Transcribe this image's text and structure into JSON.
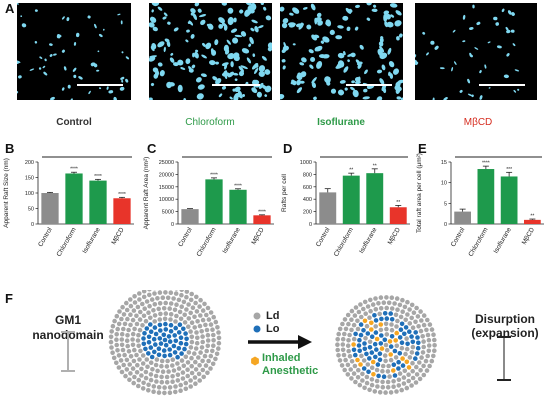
{
  "panels": {
    "A": "A",
    "B": "B",
    "C": "C",
    "D": "D",
    "E": "E",
    "F": "F"
  },
  "micrographs": [
    {
      "label": "Control",
      "color": "#333333"
    },
    {
      "label": "Chloroform",
      "color": "#2e9a48"
    },
    {
      "label": "Isoflurane",
      "color": "#2e9a48"
    },
    {
      "label": "MβCD",
      "color": "#d62d20"
    }
  ],
  "colors": {
    "control": "#8c8c8c",
    "chloroform": "#1e9a4c",
    "isoflurane": "#1e9a4c",
    "mbcd": "#e8342a",
    "particle": "#7fd8f0",
    "ld": "#a6a6a6",
    "lo": "#1f6fb8",
    "anesthetic": "#f5a623"
  },
  "chart_data": [
    {
      "type": "bar",
      "panel": "B",
      "categories": [
        "Control",
        "Chloroform",
        "Isoflurane",
        "MβCD"
      ],
      "values": [
        100,
        163,
        140,
        83
      ],
      "errors": [
        2,
        4,
        4,
        3
      ],
      "significance": [
        "",
        "****",
        "****",
        "****"
      ],
      "ylabel": "Apparent Raft Size (nm)",
      "ylim": [
        0,
        200
      ],
      "yticks": [
        0,
        50,
        100,
        150,
        200
      ]
    },
    {
      "type": "bar",
      "panel": "C",
      "categories": [
        "Control",
        "Chloroform",
        "Isoflurane",
        "MβCD"
      ],
      "values": [
        6000,
        18000,
        13800,
        3500
      ],
      "errors": [
        200,
        600,
        400,
        200
      ],
      "significance": [
        "",
        "****",
        "****",
        "****"
      ],
      "ylabel": "Apparent Raft Area (nm²)",
      "ylim": [
        0,
        25000
      ],
      "yticks": [
        0,
        5000,
        10000,
        15000,
        20000,
        25000
      ]
    },
    {
      "type": "bar",
      "panel": "D",
      "categories": [
        "Control",
        "Chloroform",
        "Isoflurane",
        "MβCD"
      ],
      "values": [
        510,
        780,
        820,
        270
      ],
      "errors": [
        60,
        40,
        70,
        30
      ],
      "significance": [
        "",
        "**",
        "**",
        "**"
      ],
      "ylabel": "Rafts per cell",
      "ylim": [
        0,
        1000
      ],
      "yticks": [
        0,
        200,
        400,
        600,
        800,
        1000
      ]
    },
    {
      "type": "bar",
      "panel": "E",
      "categories": [
        "Control",
        "Chloroform",
        "Isoflurane",
        "MβCD"
      ],
      "values": [
        3.0,
        13.3,
        11.5,
        1.0
      ],
      "errors": [
        0.6,
        0.7,
        1.0,
        0.2
      ],
      "significance": [
        "",
        "****",
        "***",
        "**"
      ],
      "ylabel": "Total raft area per cell (μm²)",
      "ylim": [
        0,
        15
      ],
      "yticks": [
        0,
        5,
        10,
        15
      ]
    }
  ],
  "schematic": {
    "left_title": "GM1\nnanodomain",
    "legend_ld": "Ld",
    "legend_lo": "Lo",
    "anesthetic": "Inhaled\nAnesthetic",
    "right_title": "Disurption\n(expansion)"
  }
}
